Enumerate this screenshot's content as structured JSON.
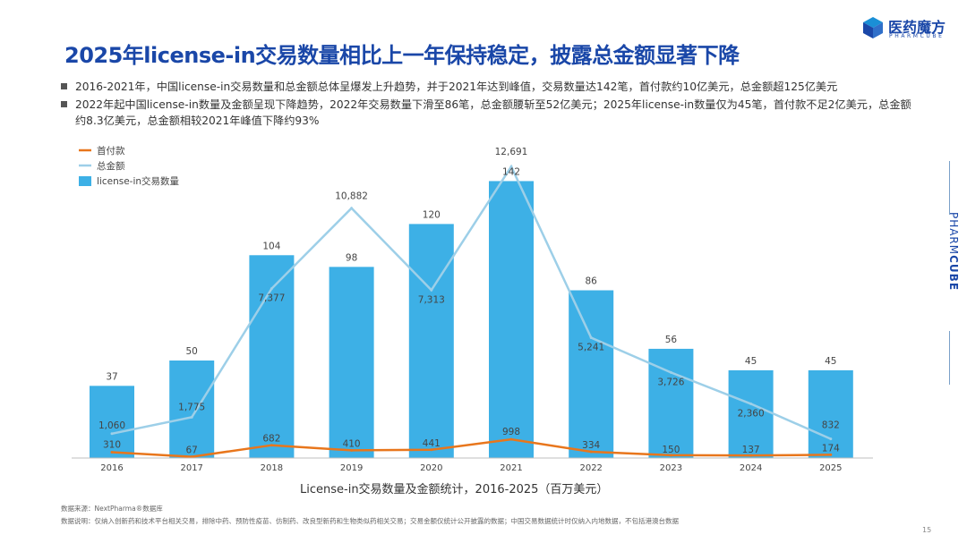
{
  "header": {
    "title": "2025年license-in交易数量相比上一年保持稳定，披露总金额显著下降",
    "logo_text": "医药魔方",
    "logo_sub": "PHARMCUBE",
    "side_brand_light": "PHARM",
    "side_brand_bold": "CUBE"
  },
  "bullets": [
    "2016-2021年，中国license-in交易数量和总金额总体呈爆发上升趋势，并于2021年达到峰值，交易数量达142笔，首付款约10亿美元，总金额超125亿美元",
    "2022年起中国license-in数量及金额呈现下降趋势，2022年交易数量下滑至86笔，总金额腰斩至52亿美元；2025年license-in数量仅为45笔，首付款不足2亿美元，总金额约8.3亿美元，总金额相较2021年峰值下降约93%"
  ],
  "chart_data": {
    "type": "bar",
    "title": "License-in交易数量及金额统计，2016-2025（百万美元）",
    "categories": [
      "2016",
      "2017",
      "2018",
      "2019",
      "2020",
      "2021",
      "2022",
      "2023",
      "2024",
      "2025"
    ],
    "series": [
      {
        "name": "license-in交易数量",
        "kind": "bar",
        "color": "#3db0e6",
        "values": [
          37,
          50,
          104,
          98,
          120,
          142,
          86,
          56,
          45,
          45
        ]
      },
      {
        "name": "总金额",
        "kind": "line",
        "color": "#9dcfe8",
        "values": [
          1060,
          1775,
          7377,
          10882,
          7313,
          12691,
          5241,
          3726,
          2360,
          832
        ]
      },
      {
        "name": "首付款",
        "kind": "line",
        "color": "#e8761c",
        "values": [
          310,
          67,
          682,
          410,
          441,
          998,
          334,
          150,
          137,
          174
        ]
      }
    ],
    "legend": [
      "首付款",
      "总金额",
      "license-in交易数量"
    ],
    "legend_position": "top-left"
  },
  "footer": {
    "source": "数据来源：NextPharma®数据库",
    "note": "数据说明：仅纳入创新药和技术平台相关交易，排除中药、预防性疫苗、仿制药、改良型新药和生物类似药相关交易；交易金额仅统计公开披露的数据；中国交易数据统计时仅纳入内地数据，不包括港澳台数据",
    "page": "15"
  }
}
